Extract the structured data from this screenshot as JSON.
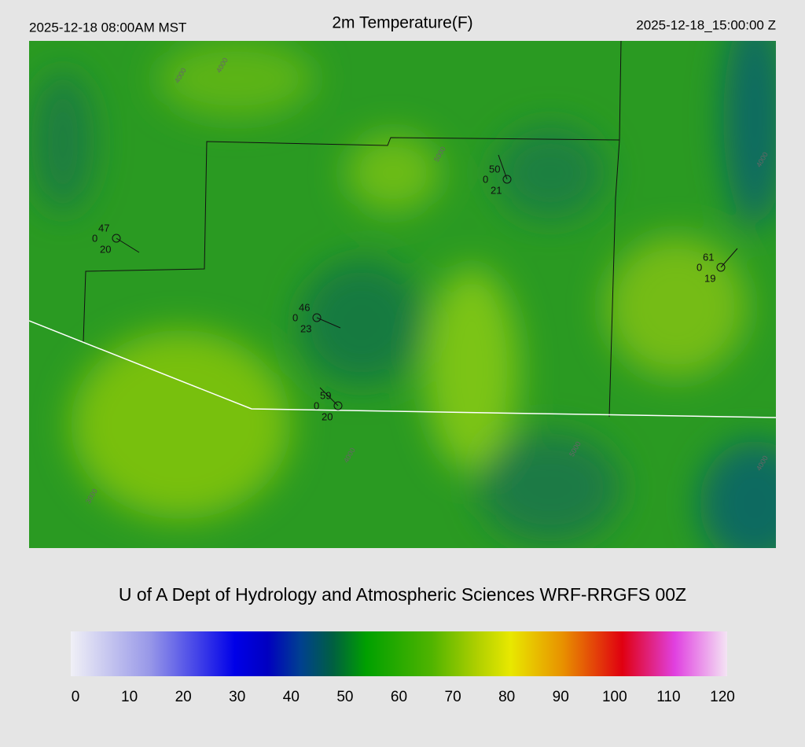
{
  "header": {
    "local_time": "2025-12-18 08:00AM MST",
    "title": "2m Temperature(F)",
    "valid_time": "2025-12-18_15:00:00 Z"
  },
  "stations": [
    {
      "temperature": 47,
      "precip": 0,
      "dewpoint": 20
    },
    {
      "temperature": 50,
      "precip": 0,
      "dewpoint": 21
    },
    {
      "temperature": 61,
      "precip": 0,
      "dewpoint": 19
    },
    {
      "temperature": 46,
      "precip": 0,
      "dewpoint": 23
    },
    {
      "temperature": 59,
      "precip": 0,
      "dewpoint": 20
    }
  ],
  "contour_labels": [
    4000,
    4000,
    5000,
    4000,
    5000,
    4000,
    3000,
    4000
  ],
  "credit": "U of A Dept of Hydrology and Atmospheric Sciences WRF-RRGFS 00Z",
  "colorbar": {
    "ticks": [
      0,
      10,
      20,
      30,
      40,
      50,
      60,
      70,
      80,
      90,
      100,
      110,
      120
    ]
  }
}
